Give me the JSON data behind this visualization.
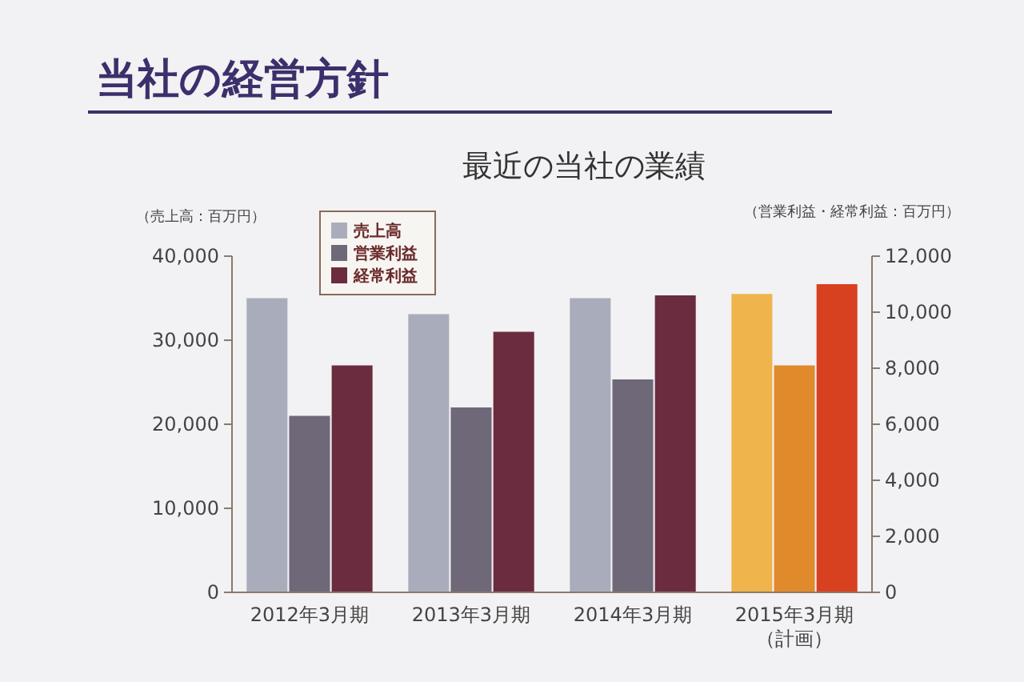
{
  "chart_data": {
    "type": "bar",
    "title": "当社の経営方針",
    "subtitle": "最近の当社の業績",
    "ylabel": "（売上高：百万円）",
    "y2label": "（営業利益・経常利益：百万円）",
    "categories": [
      "2012年3月期",
      "2013年3月期",
      "2014年3月期",
      "2015年3月期（計画）"
    ],
    "series": [
      {
        "name": "売上高",
        "color": "#a9adbb",
        "colors": [
          "#a9adbb",
          "#a9adbb",
          "#a9adbb",
          "#f0b44c"
        ],
        "values": [
          35000,
          33100,
          35000,
          35500
        ]
      },
      {
        "name": "営業利益",
        "color": "#6f6879",
        "axis": "y2",
        "colors": [
          "#6f6879",
          "#6f6879",
          "#6f6879",
          "#e08a2c"
        ],
        "values": [
          6300,
          6600,
          7600,
          8100
        ]
      },
      {
        "name": "経常利益",
        "color": "#6a2c3e",
        "axis": "y2",
        "colors": [
          "#6a2c3e",
          "#6a2c3e",
          "#6a2c3e",
          "#d8411f"
        ],
        "values": [
          8100,
          9300,
          10600,
          11000
        ]
      }
    ],
    "ylim": [
      0,
      40000
    ],
    "yticks": [
      0,
      {
        "value": 10000,
        "label": "10,000"
      },
      {
        "value": 20000,
        "label": "20,000"
      },
      {
        "value": 30000,
        "label": "30,000"
      },
      {
        "value": 40000,
        "label": "40,000"
      }
    ],
    "y2lim": [
      0,
      12000
    ],
    "y2ticks": [
      0,
      {
        "value": 2000,
        "label": "2,000"
      },
      {
        "value": 4000,
        "label": "4,000"
      },
      {
        "value": 6000,
        "label": "6,000"
      },
      {
        "value": 8000,
        "label": "8,000"
      },
      {
        "value": 10000,
        "label": "10,000"
      },
      {
        "value": 12000,
        "label": "12,000"
      }
    ],
    "legend": "top left",
    "grid": false
  }
}
